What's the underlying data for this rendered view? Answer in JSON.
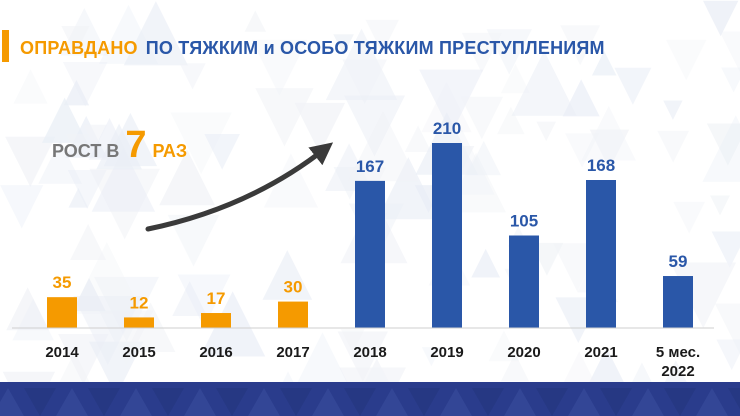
{
  "title": {
    "part1": "ОПРАВДАНО",
    "part2": "ПО ТЯЖКИМ и ОСОБО ТЯЖКИМ ПРЕСТУПЛЕНИЯМ"
  },
  "growth": {
    "word": "РОСТ В",
    "number": "7",
    "unit": "РАЗ"
  },
  "colors": {
    "orange": "#f59a00",
    "blue": "#2a57a8",
    "footer": "#2a3c8c"
  },
  "chart_data": {
    "type": "bar",
    "categories": [
      "2014",
      "2015",
      "2016",
      "2017",
      "2018",
      "2019",
      "2020",
      "2021",
      "5 мес.\n2022"
    ],
    "values": [
      35,
      12,
      17,
      30,
      167,
      210,
      105,
      168,
      59
    ],
    "bar_colors": [
      "#f59a00",
      "#f59a00",
      "#f59a00",
      "#f59a00",
      "#2a57a8",
      "#2a57a8",
      "#2a57a8",
      "#2a57a8",
      "#2a57a8"
    ],
    "title": "",
    "xlabel": "",
    "ylabel": "",
    "ylim": [
      0,
      210
    ],
    "grid": false,
    "legend": "none"
  }
}
